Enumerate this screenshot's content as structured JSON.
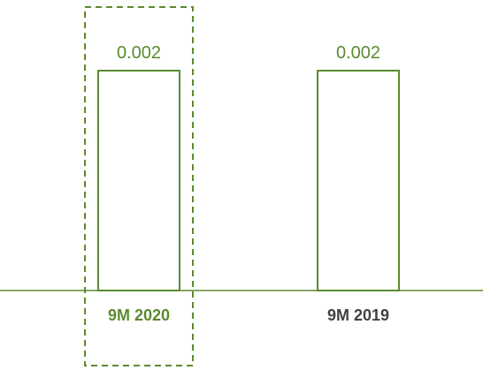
{
  "chart_data": {
    "type": "bar",
    "categories": [
      "9M 2020",
      "9M 2019"
    ],
    "values": [
      0.002,
      0.002
    ],
    "value_labels": [
      "0.002",
      "0.002"
    ],
    "ylim": [
      0,
      0.002
    ],
    "highlighted_category": "9M 2020",
    "grid": false,
    "legend": "none"
  },
  "colors": {
    "bar_stroke": "#5b8a2f",
    "value_label": "#5b8a2f",
    "highlight_label": "#5b8a2f",
    "normal_label": "#404040",
    "axis": "#5b8a2f",
    "highlight_box": "#5b8a2f"
  }
}
